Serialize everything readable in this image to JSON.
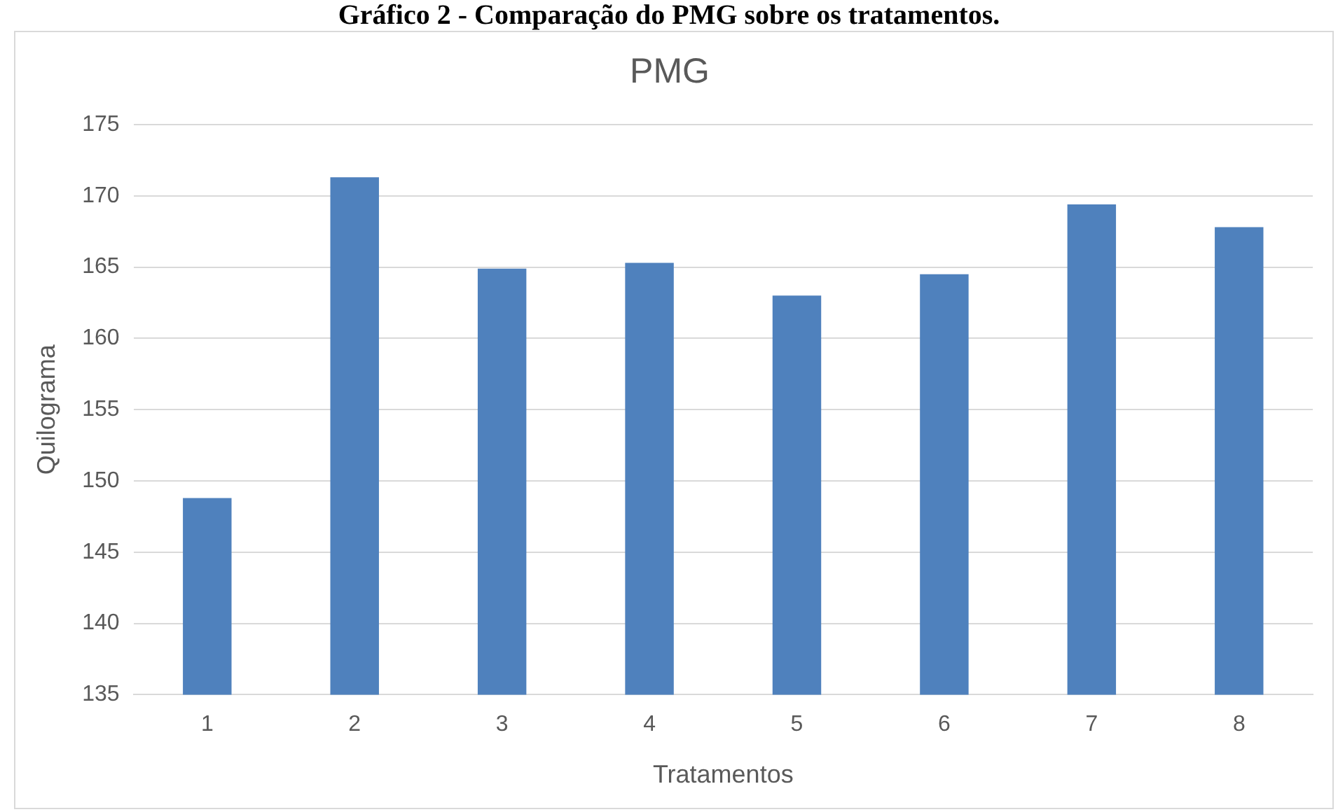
{
  "chart_data": {
    "type": "bar",
    "title": "PMG",
    "xlabel": "Tratamentos",
    "ylabel": "Quilograma",
    "annotations": [
      "Gráfico 2 - Comparação do PMG sobre os tratamentos."
    ],
    "categories": [
      "1",
      "2",
      "3",
      "4",
      "5",
      "6",
      "7",
      "8"
    ],
    "values": [
      148.8,
      171.3,
      164.9,
      165.3,
      163.0,
      164.5,
      169.4,
      167.8
    ],
    "color": "#4f81bd",
    "ylim": [
      135,
      175
    ],
    "yticks": [
      135,
      140,
      145,
      150,
      155,
      160,
      165,
      170,
      175
    ],
    "grid": "y"
  }
}
